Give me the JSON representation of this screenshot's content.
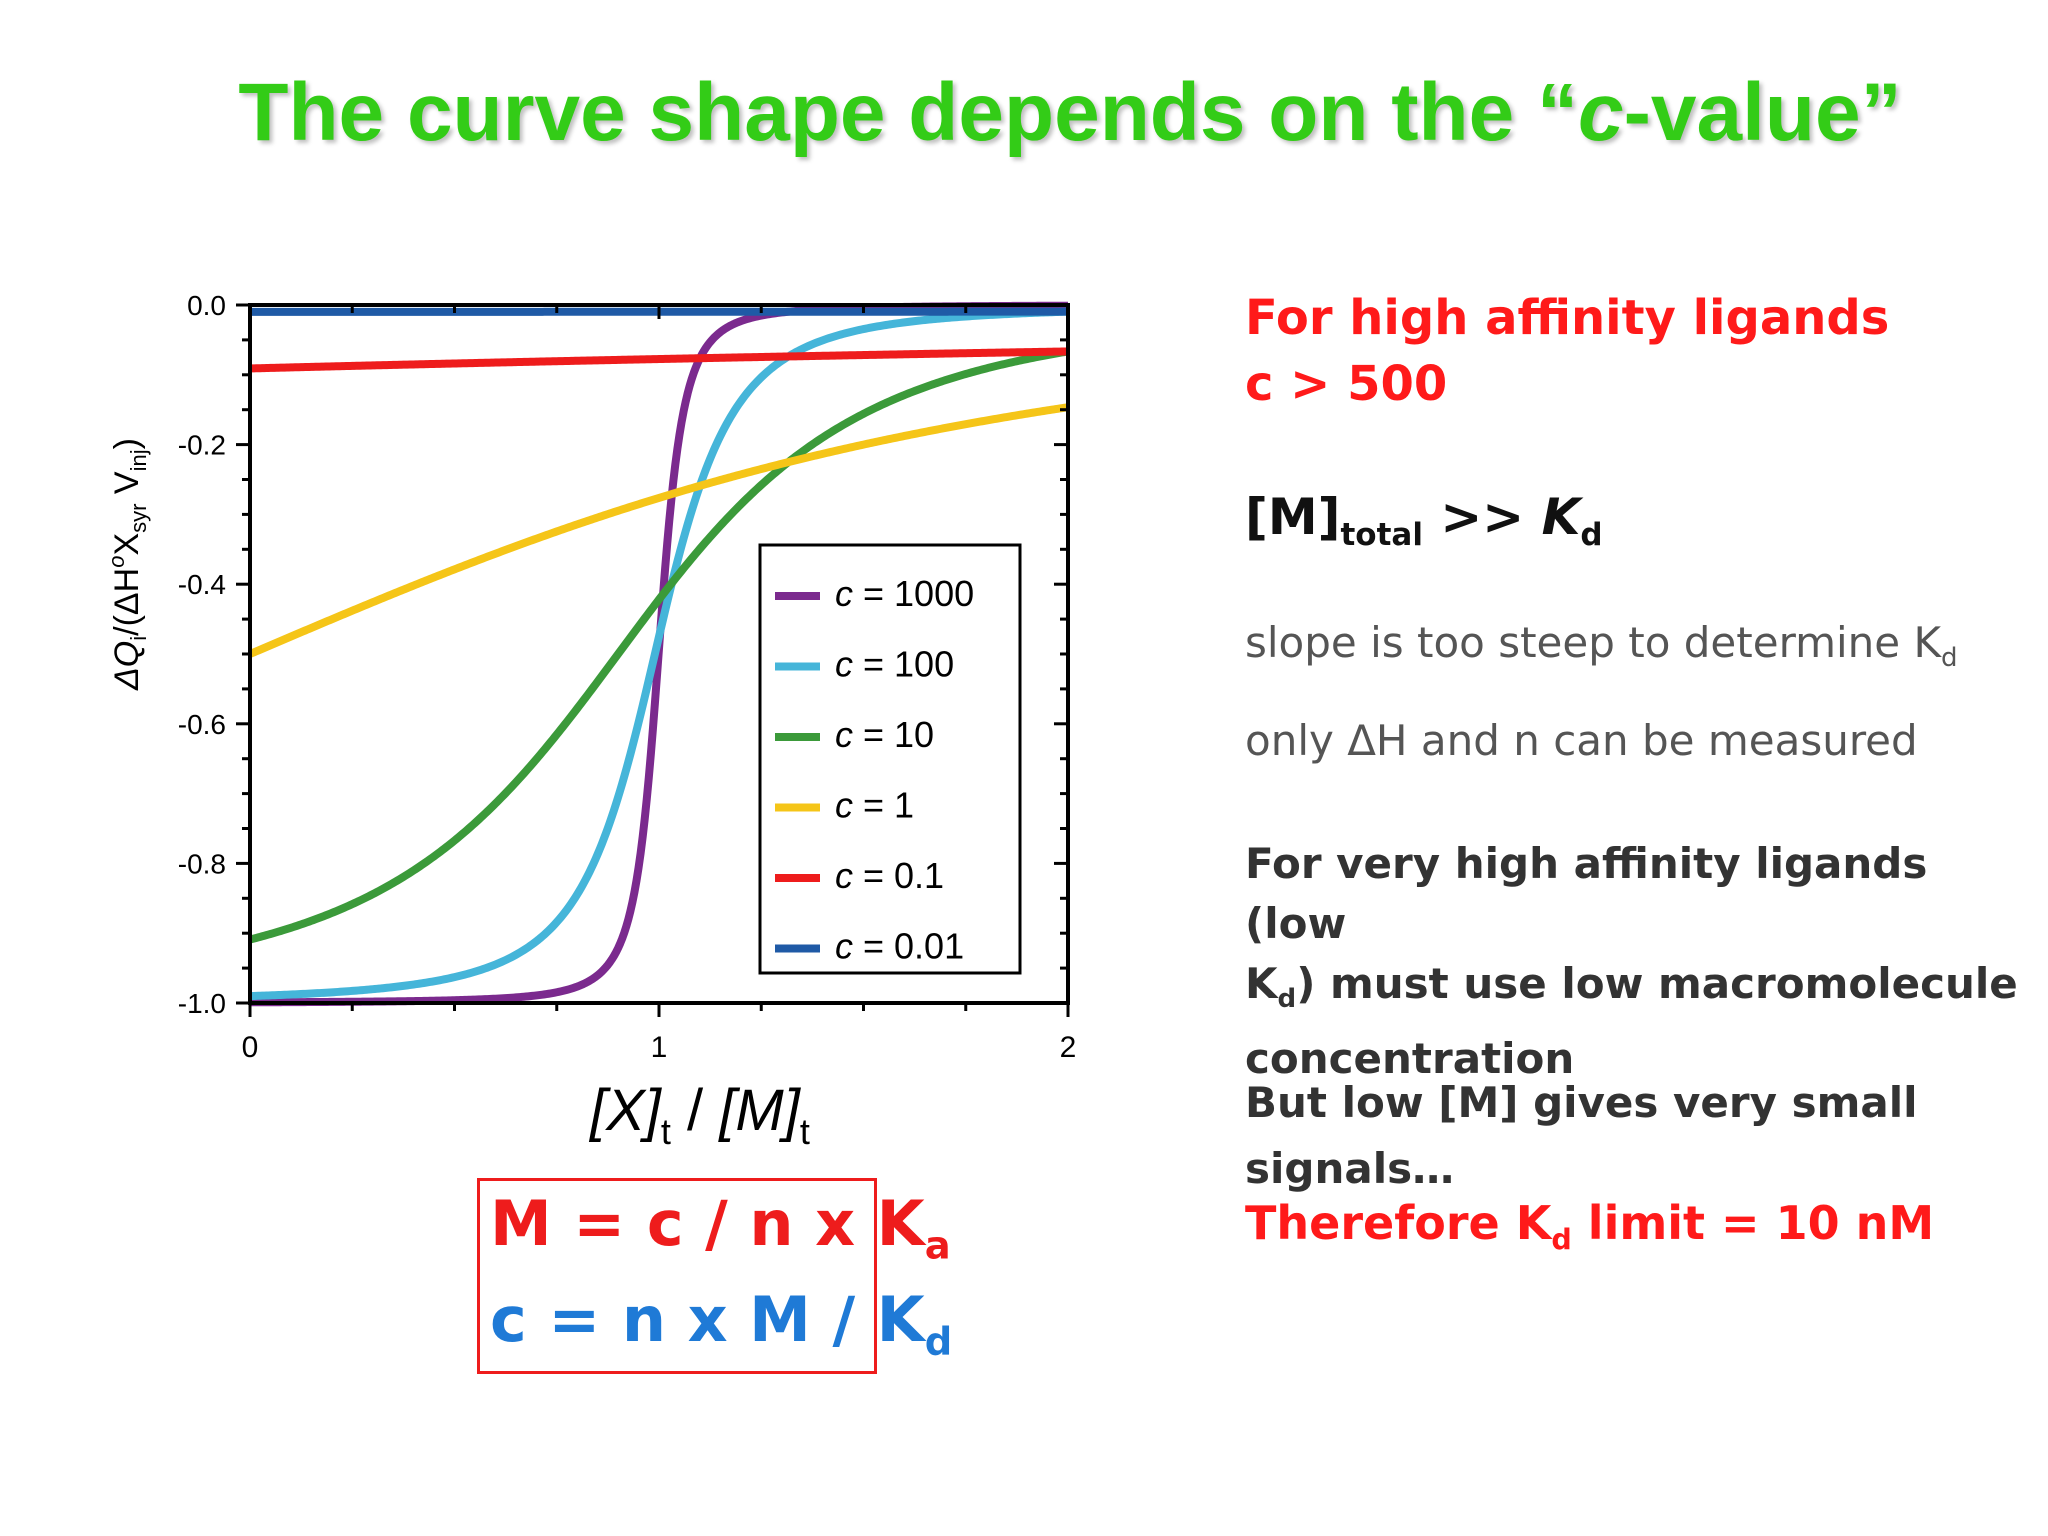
{
  "title": {
    "pre": "The curve shape depends on the “",
    "italic": "c",
    "post": "-value”"
  },
  "chart_data": {
    "type": "line",
    "xlabel": {
      "x": "[X]",
      "x_sub": "t",
      "sep": " / ",
      "m": "[M]",
      "m_sub": "t"
    },
    "ylabel": {
      "q": "ΔQ",
      "q_sub": "i",
      "mid": "/(ΔH",
      "h_sup": "o",
      "x": "X",
      "x_sub": "syr",
      "v": " V",
      "v_sub": "inj",
      "end": ")"
    },
    "xlim": [
      0,
      2
    ],
    "ylim": [
      -1.0,
      0.0
    ],
    "x_ticks": [
      "0",
      "1",
      "2"
    ],
    "y_ticks": [
      "0.0",
      "-0.2",
      "-0.4",
      "-0.6",
      "-0.8",
      "-1.0"
    ],
    "grid": false,
    "legend_position": "center-right",
    "series": [
      {
        "name": "c = 1000",
        "c": 1000,
        "color": "#7b2a8e"
      },
      {
        "name": "c = 100",
        "c": 100,
        "color": "#45b5d9"
      },
      {
        "name": "c = 10",
        "c": 10,
        "color": "#3b9a3a"
      },
      {
        "name": "c = 1",
        "c": 1,
        "color": "#f5c518"
      },
      {
        "name": "c = 0.1",
        "c": 0.1,
        "color": "#ee1c1c"
      },
      {
        "name": "c = 0.01",
        "c": 0.01,
        "color": "#1f5aa6"
      }
    ]
  },
  "right_panel": {
    "high_affinity": "For high affinity ligands",
    "c_threshold": "c > 500",
    "mtotal_m": "[M]",
    "mtotal_sub": "total",
    "mtotal_gg": " >> ",
    "mtotal_k": "K",
    "mtotal_ksub": "d",
    "slope": "slope is too steep to determine K",
    "slope_sub": "d",
    "only": "only ΔH and n can be measured",
    "very_high_1": "For very high affinity ligands (low",
    "very_high_2a": "K",
    "very_high_2sub": "d",
    "very_high_2b": ") must use low macromolecule",
    "very_high_3": "concentration",
    "but_low_1": "But low [M] gives very small",
    "but_low_2": "signals…",
    "therefore_a": "Therefore K",
    "therefore_sub": "d",
    "therefore_b": " limit = 10 nM"
  },
  "formulas": {
    "line1": "M = c / n x K",
    "line1_sub": "a",
    "line2": "c = n x M / K",
    "line2_sub": "d"
  }
}
